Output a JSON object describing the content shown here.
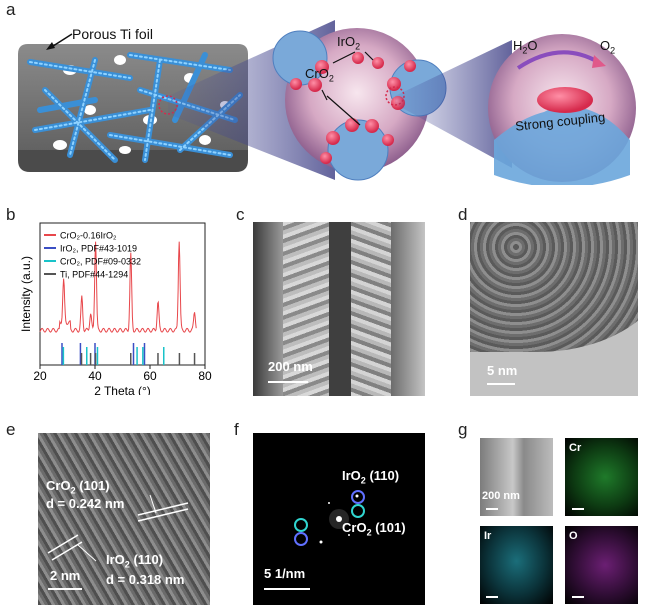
{
  "panels": {
    "a": {
      "letter": "a",
      "foil_label": "Porous Ti foil",
      "iro2": "IrO",
      "cro2": "CrO",
      "sub2": "2",
      "h2o": "H",
      "o2": "O",
      "h2o_tail": "O",
      "coupling": "Strong coupling"
    },
    "b": {
      "letter": "b"
    },
    "c": {
      "letter": "c",
      "scale": "200 nm"
    },
    "d": {
      "letter": "d",
      "scale": "5 nm"
    },
    "e": {
      "letter": "e",
      "cro2_label": "CrO",
      "cro2_plane": "(101)",
      "cro2_d": "d = 0.242 nm",
      "iro2_label": "IrO",
      "iro2_plane": "(110)",
      "iro2_d": "d = 0.318 nm",
      "scale": "2 nm",
      "sub2": "2"
    },
    "f": {
      "letter": "f",
      "iro2_label": "IrO",
      "iro2_plane": "(110)",
      "cro2_label": "CrO",
      "cro2_plane": "(101)",
      "scale": "5 1/nm",
      "sub2": "2"
    },
    "g": {
      "letter": "g",
      "scale": "200 nm",
      "maps": [
        "Cr",
        "Ir",
        "O"
      ]
    }
  },
  "chart_data": {
    "type": "line",
    "xlabel": "2 Theta (°)",
    "ylabel": "Intensity (a.u.)",
    "xlim": [
      20,
      80
    ],
    "xticks": [
      20,
      40,
      60,
      80
    ],
    "legend_placement": "top-left",
    "legend": [
      {
        "name": "CrO₂-0.16IrO₂",
        "color": "#e8474b"
      },
      {
        "name": "IrO₂, PDF#43-1019",
        "color": "#3b4fc4"
      },
      {
        "name": "CrO₂, PDF#09-0332",
        "color": "#19c3c9"
      },
      {
        "name": "Ti, PDF#44-1294",
        "color": "#555555"
      }
    ],
    "series": [
      {
        "name": "CrO₂-0.16IrO₂",
        "peaks": [
          {
            "x": 28.6,
            "h": 0.45
          },
          {
            "x": 35.2,
            "h": 0.35
          },
          {
            "x": 38.4,
            "h": 0.18
          },
          {
            "x": 40.2,
            "h": 0.95
          },
          {
            "x": 53.0,
            "h": 0.8
          },
          {
            "x": 62.9,
            "h": 0.3
          },
          {
            "x": 70.6,
            "h": 0.95
          },
          {
            "x": 76.2,
            "h": 0.2
          }
        ]
      }
    ],
    "reference_sticks": {
      "IrO2": [
        28.0,
        34.7,
        40.0,
        54.0,
        58.0
      ],
      "CrO2": [
        28.5,
        37.0,
        40.9,
        55.3,
        57.4,
        65.0
      ],
      "Ti": [
        35.1,
        38.4,
        40.2,
        53.0,
        62.9,
        70.7,
        76.2
      ]
    }
  }
}
